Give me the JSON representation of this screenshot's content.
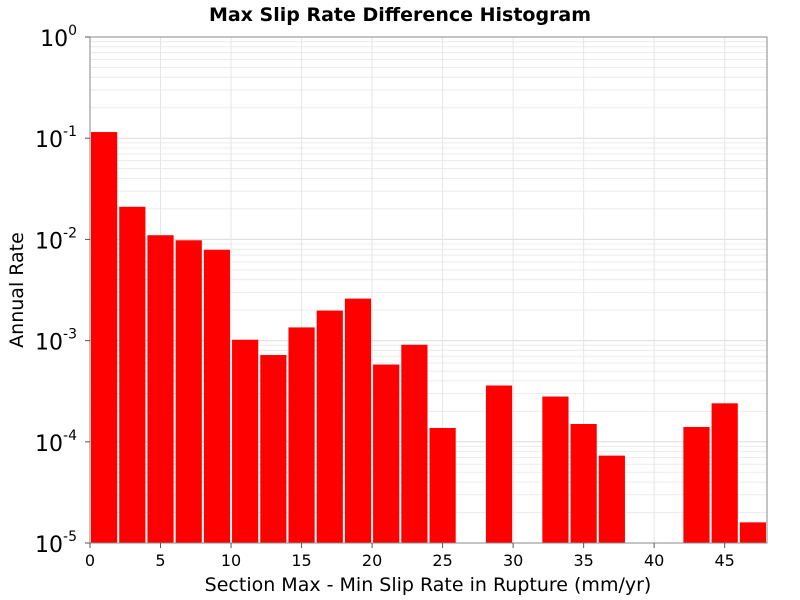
{
  "chart_data": {
    "type": "bar",
    "title": "Max Slip Rate Difference Histogram",
    "xlabel": "Section Max - Min Slip Rate in Rupture (mm/yr)",
    "ylabel": "Annual Rate",
    "x_scale": "linear",
    "y_scale": "log",
    "xlim": [
      0,
      48
    ],
    "ylim": [
      1e-05,
      1
    ],
    "bin_width": 2,
    "x_ticks": [
      0,
      5,
      10,
      15,
      20,
      25,
      30,
      35,
      40,
      45
    ],
    "x_tick_labels": [
      "0",
      "5",
      "10",
      "15",
      "20",
      "25",
      "30",
      "35",
      "40",
      "45"
    ],
    "y_ticks": [
      {
        "value": 1,
        "base": "10",
        "exp": "0"
      },
      {
        "value": 0.1,
        "base": "10",
        "exp": "-1"
      },
      {
        "value": 0.01,
        "base": "10",
        "exp": "-2"
      },
      {
        "value": 0.001,
        "base": "10",
        "exp": "-3"
      },
      {
        "value": 0.0001,
        "base": "10",
        "exp": "-4"
      },
      {
        "value": 1e-05,
        "base": "10",
        "exp": "-5"
      }
    ],
    "grid": true,
    "bar_color": "#ff0000",
    "bars": [
      {
        "x": 1,
        "value": 0.115
      },
      {
        "x": 3,
        "value": 0.021
      },
      {
        "x": 5,
        "value": 0.011
      },
      {
        "x": 7,
        "value": 0.0098
      },
      {
        "x": 9,
        "value": 0.0079
      },
      {
        "x": 11,
        "value": 0.00102
      },
      {
        "x": 13,
        "value": 0.00072
      },
      {
        "x": 15,
        "value": 0.00135
      },
      {
        "x": 17,
        "value": 0.00198
      },
      {
        "x": 19,
        "value": 0.0026
      },
      {
        "x": 21,
        "value": 0.00058
      },
      {
        "x": 23,
        "value": 0.00091
      },
      {
        "x": 25,
        "value": 0.000137
      },
      {
        "x": 29,
        "value": 0.00036
      },
      {
        "x": 33,
        "value": 0.00028
      },
      {
        "x": 35,
        "value": 0.00015
      },
      {
        "x": 37,
        "value": 7.3e-05
      },
      {
        "x": 43,
        "value": 0.00014
      },
      {
        "x": 45,
        "value": 0.00024
      },
      {
        "x": 47,
        "value": 1.6e-05
      }
    ]
  }
}
